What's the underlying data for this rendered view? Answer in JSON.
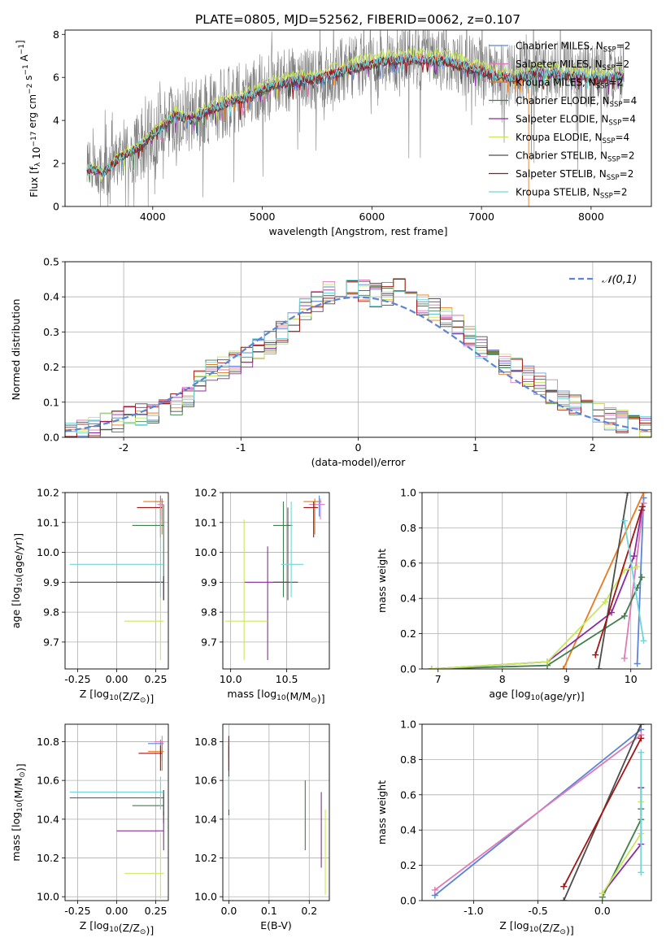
{
  "figure": {
    "title": "PLATE=0805, MJD=52562, FIBERID=0062, z=0.107"
  },
  "chart_data": [
    {
      "id": "spectrum",
      "type": "line",
      "xlabel": "wavelength [Angstrom, rest frame]",
      "ylabel": "Flux [f_λ 10^-17 erg cm^-2 s^-1 A^-1]",
      "xlim": [
        3200,
        8550
      ],
      "ylim": [
        0,
        8.2
      ],
      "xticks": [
        4000,
        5000,
        6000,
        7000,
        8000
      ],
      "yticks": [
        0,
        2,
        4,
        6,
        8
      ],
      "grid": false,
      "legend_position": "right",
      "data_range": [
        3400,
        8300
      ],
      "data_color": "#808080",
      "continuum": {
        "x": [
          3400,
          3550,
          3700,
          3850,
          4000,
          4100,
          4200,
          4350,
          4500,
          4700,
          4900,
          5100,
          5300,
          5500,
          5700,
          5900,
          6100,
          6300,
          6500,
          6700,
          6900,
          7100,
          7300,
          7500,
          7700,
          7900,
          8100,
          8300
        ],
        "y": [
          1.8,
          1.6,
          2.3,
          2.7,
          3.4,
          3.8,
          4.3,
          4.1,
          4.5,
          4.9,
          5.2,
          5.7,
          5.9,
          6.0,
          6.3,
          6.6,
          6.8,
          6.9,
          6.9,
          6.8,
          6.5,
          6.2,
          6.0,
          6.3,
          6.2,
          6.1,
          6.0,
          6.2
        ]
      },
      "series": [
        {
          "name": "Chabrier MILES, N_SSP=2",
          "color": "#5a85d8"
        },
        {
          "name": "Salpeter MILES, N_SSP=2",
          "color": "#e07ab8"
        },
        {
          "name": "Kroupa MILES, N_SSP=2",
          "color": "#e87a1e"
        },
        {
          "name": "Chabrier ELODIE, N_SSP=4",
          "color": "#3f7f4a"
        },
        {
          "name": "Salpeter ELODIE, N_SSP=4",
          "color": "#8a2aa0"
        },
        {
          "name": "Kroupa ELODIE, N_SSP=4",
          "color": "#c8e85a"
        },
        {
          "name": "Chabrier STELIB, N_SSP=2",
          "color": "#4d4d4d"
        },
        {
          "name": "Salpeter STELIB, N_SSP=2",
          "color": "#a31515"
        },
        {
          "name": "Kroupa STELIB, N_SSP=2",
          "color": "#72d6d8"
        }
      ]
    },
    {
      "id": "residuals",
      "type": "step-histogram",
      "xlabel": "(data-model)/error",
      "ylabel": "Normed distribution",
      "xlim": [
        -2.5,
        2.5
      ],
      "ylim": [
        0,
        0.5
      ],
      "xticks": [
        -2,
        -1,
        0,
        1,
        2
      ],
      "yticks": [
        0.0,
        0.1,
        0.2,
        0.3,
        0.4,
        0.5
      ],
      "grid": true,
      "legend_position": "top-right",
      "reference": {
        "name": "𝒩(0,1)",
        "color": "#5a85d8",
        "mean": 0,
        "sigma": 1
      },
      "bin_width": 0.1,
      "envelope": {
        "x": [
          -2.5,
          -2.2,
          -2.0,
          -1.7,
          -1.5,
          -1.3,
          -1.0,
          -0.7,
          -0.4,
          -0.2,
          0.0,
          0.2,
          0.35,
          0.6,
          0.8,
          1.1,
          1.4,
          1.7,
          2.0,
          2.3,
          2.5
        ],
        "y": [
          0.015,
          0.03,
          0.05,
          0.08,
          0.1,
          0.18,
          0.22,
          0.28,
          0.38,
          0.42,
          0.42,
          0.4,
          0.43,
          0.37,
          0.33,
          0.24,
          0.18,
          0.12,
          0.07,
          0.04,
          0.02
        ]
      }
    },
    {
      "id": "age-vs-Z",
      "type": "errorbar",
      "xlabel": "Z [log10(Z/Z⊙)]",
      "ylabel": "age [log10(age/yr)]",
      "xlim": [
        -0.33,
        0.33
      ],
      "ylim": [
        9.61,
        10.2
      ],
      "xticks": [
        -0.25,
        0.0,
        0.25
      ],
      "yticks": [
        9.7,
        9.8,
        9.9,
        10.0,
        10.1,
        10.2
      ],
      "grid": true,
      "points": [
        {
          "series": "Chabrier MILES",
          "color": "#5a85d8",
          "x": 0.28,
          "xlo": 0.24,
          "xhi": 0.3,
          "y": 10.17,
          "ylo": 10.12,
          "yhi": 10.19
        },
        {
          "series": "Salpeter MILES",
          "color": "#e07ab8",
          "x": 0.29,
          "xlo": 0.26,
          "xhi": 0.3,
          "y": 10.16,
          "ylo": 10.11,
          "yhi": 10.18
        },
        {
          "series": "Kroupa MILES",
          "color": "#e87a1e",
          "x": 0.29,
          "xlo": 0.17,
          "xhi": 0.3,
          "y": 10.17,
          "ylo": 10.06,
          "yhi": 10.18
        },
        {
          "series": "Chabrier ELODIE",
          "color": "#3f7f4a",
          "x": 0.3,
          "xlo": 0.1,
          "xhi": 0.3,
          "y": 10.09,
          "ylo": 9.84,
          "yhi": 10.16
        },
        {
          "series": "Salpeter ELODIE",
          "color": "#8a2aa0",
          "x": 0.3,
          "xlo": 0.0,
          "xhi": 0.3,
          "y": 9.9,
          "ylo": 9.84,
          "yhi": 9.92
        },
        {
          "series": "Kroupa ELODIE",
          "color": "#c8e85a",
          "x": 0.28,
          "xlo": 0.05,
          "xhi": 0.3,
          "y": 9.77,
          "ylo": 9.64,
          "yhi": 9.92
        },
        {
          "series": "Chabrier STELIB",
          "color": "#4d4d4d",
          "x": 0.3,
          "xlo": -0.3,
          "xhi": 0.3,
          "y": 9.9,
          "ylo": 9.84,
          "yhi": 9.92
        },
        {
          "series": "Salpeter STELIB",
          "color": "#a31515",
          "x": 0.28,
          "xlo": 0.13,
          "xhi": 0.29,
          "y": 10.15,
          "ylo": 10.05,
          "yhi": 10.17
        },
        {
          "series": "Kroupa STELIB",
          "color": "#72d6d8",
          "x": 0.28,
          "xlo": -0.3,
          "xhi": 0.3,
          "y": 9.96,
          "ylo": 9.85,
          "yhi": 10.17
        }
      ]
    },
    {
      "id": "age-vs-mass",
      "type": "errorbar",
      "xlabel": "mass [log10(M/M⊙)]",
      "ylabel": "",
      "xlim": [
        9.93,
        10.88
      ],
      "ylim": [
        9.61,
        10.2
      ],
      "xticks": [
        10.0,
        10.5
      ],
      "yticks": [
        9.7,
        9.8,
        9.9,
        10.0,
        10.1,
        10.2
      ],
      "grid": true,
      "points": [
        {
          "series": "Chabrier MILES",
          "color": "#5a85d8",
          "x": 10.79,
          "xlo": 10.72,
          "xhi": 10.81,
          "y": 10.17,
          "ylo": 10.12,
          "yhi": 10.19
        },
        {
          "series": "Salpeter MILES",
          "color": "#e07ab8",
          "x": 10.8,
          "xlo": 10.7,
          "xhi": 10.84,
          "y": 10.16,
          "ylo": 10.11,
          "yhi": 10.18
        },
        {
          "series": "Kroupa MILES",
          "color": "#e87a1e",
          "x": 10.75,
          "xlo": 10.65,
          "xhi": 10.8,
          "y": 10.17,
          "ylo": 10.06,
          "yhi": 10.18
        },
        {
          "series": "Chabrier ELODIE",
          "color": "#3f7f4a",
          "x": 10.47,
          "xlo": 10.38,
          "xhi": 10.55,
          "y": 10.09,
          "ylo": 9.85,
          "yhi": 10.17
        },
        {
          "series": "Salpeter ELODIE",
          "color": "#8a2aa0",
          "x": 10.33,
          "xlo": 10.12,
          "xhi": 10.5,
          "y": 9.9,
          "ylo": 9.64,
          "yhi": 10.02
        },
        {
          "series": "Kroupa ELODIE",
          "color": "#c8e85a",
          "x": 10.12,
          "xlo": 9.95,
          "xhi": 10.33,
          "y": 9.77,
          "ylo": 9.64,
          "yhi": 10.11
        },
        {
          "series": "Chabrier STELIB",
          "color": "#4d4d4d",
          "x": 10.51,
          "xlo": 10.38,
          "xhi": 10.6,
          "y": 9.9,
          "ylo": 9.84,
          "yhi": 10.15
        },
        {
          "series": "Salpeter STELIB",
          "color": "#a31515",
          "x": 10.74,
          "xlo": 10.65,
          "xhi": 10.78,
          "y": 10.15,
          "ylo": 10.05,
          "yhi": 10.17
        },
        {
          "series": "Kroupa STELIB",
          "color": "#72d6d8",
          "x": 10.54,
          "xlo": 10.45,
          "xhi": 10.65,
          "y": 9.96,
          "ylo": 9.85,
          "yhi": 10.17
        }
      ]
    },
    {
      "id": "weight-vs-age",
      "type": "line",
      "xlabel": "age [log10(age/yr)]",
      "ylabel": "mass weight",
      "xlim": [
        6.75,
        10.32
      ],
      "ylim": [
        0,
        1
      ],
      "xticks": [
        7,
        8,
        9,
        10
      ],
      "yticks": [
        0.0,
        0.2,
        0.4,
        0.6,
        0.8,
        1.0
      ],
      "grid": true,
      "series": [
        {
          "name": "Chabrier MILES",
          "color": "#5a85d8",
          "x": [
            10.1,
            10.2
          ],
          "y": [
            0.03,
            0.97
          ]
        },
        {
          "name": "Salpeter MILES",
          "color": "#e07ab8",
          "x": [
            9.9,
            10.2
          ],
          "y": [
            0.06,
            0.94
          ]
        },
        {
          "name": "Kroupa MILES",
          "color": "#e87a1e",
          "x": [
            8.95,
            10.2
          ],
          "y": [
            0.0,
            1.0
          ]
        },
        {
          "name": "Chabrier ELODIE",
          "color": "#3f7f4a",
          "x": [
            6.9,
            8.7,
            9.9,
            10.1,
            10.17
          ],
          "y": [
            0.0,
            0.02,
            0.3,
            0.46,
            0.52
          ]
        },
        {
          "name": "Salpeter ELODIE",
          "color": "#8a2aa0",
          "x": [
            6.9,
            8.7,
            9.7,
            10.05,
            10.17
          ],
          "y": [
            0.0,
            0.04,
            0.32,
            0.64,
            0.9
          ]
        },
        {
          "name": "Kroupa ELODIE",
          "color": "#c8e85a",
          "x": [
            6.9,
            8.7,
            9.6,
            9.9,
            10.1
          ],
          "y": [
            0.0,
            0.04,
            0.38,
            0.56,
            0.58
          ]
        },
        {
          "name": "Chabrier STELIB",
          "color": "#4d4d4d",
          "x": [
            9.5,
            9.95
          ],
          "y": [
            0.0,
            1.0
          ]
        },
        {
          "name": "Salpeter STELIB",
          "color": "#a31515",
          "x": [
            9.45,
            10.18
          ],
          "y": [
            0.08,
            0.92
          ]
        },
        {
          "name": "Kroupa STELIB",
          "color": "#72d6d8",
          "x": [
            9.9,
            10.2
          ],
          "y": [
            0.84,
            0.16
          ]
        }
      ]
    },
    {
      "id": "mass-vs-Z",
      "type": "errorbar",
      "xlabel": "Z [log10(Z/Z⊙)]",
      "ylabel": "mass [log10(M/M⊙)]",
      "xlim": [
        -0.33,
        0.33
      ],
      "ylim": [
        9.98,
        10.89
      ],
      "xticks": [
        -0.25,
        0.0,
        0.25
      ],
      "yticks": [
        10.0,
        10.2,
        10.4,
        10.6,
        10.8
      ],
      "grid": true,
      "points": [
        {
          "series": "Chabrier MILES",
          "color": "#5a85d8",
          "x": 0.28,
          "xlo": 0.2,
          "xhi": 0.3,
          "y": 10.79,
          "ylo": 10.72,
          "yhi": 10.81
        },
        {
          "series": "Salpeter MILES",
          "color": "#e07ab8",
          "x": 0.29,
          "xlo": 0.24,
          "xhi": 0.3,
          "y": 10.8,
          "ylo": 10.7,
          "yhi": 10.83
        },
        {
          "series": "Kroupa MILES",
          "color": "#e87a1e",
          "x": 0.29,
          "xlo": 0.2,
          "xhi": 0.3,
          "y": 10.75,
          "ylo": 10.65,
          "yhi": 10.8
        },
        {
          "series": "Chabrier ELODIE",
          "color": "#3f7f4a",
          "x": 0.3,
          "xlo": 0.1,
          "xhi": 0.3,
          "y": 10.47,
          "ylo": 10.38,
          "yhi": 10.55
        },
        {
          "series": "Salpeter ELODIE",
          "color": "#8a2aa0",
          "x": 0.3,
          "xlo": 0.0,
          "xhi": 0.3,
          "y": 10.34,
          "ylo": 10.24,
          "yhi": 10.44
        },
        {
          "series": "Kroupa ELODIE",
          "color": "#c8e85a",
          "x": 0.28,
          "xlo": 0.05,
          "xhi": 0.3,
          "y": 10.12,
          "ylo": 9.99,
          "yhi": 10.33
        },
        {
          "series": "Chabrier STELIB",
          "color": "#4d4d4d",
          "x": 0.3,
          "xlo": -0.3,
          "xhi": 0.3,
          "y": 10.51,
          "ylo": 10.42,
          "yhi": 10.55
        },
        {
          "series": "Salpeter STELIB",
          "color": "#a31515",
          "x": 0.28,
          "xlo": 0.14,
          "xhi": 0.29,
          "y": 10.74,
          "ylo": 10.65,
          "yhi": 10.78
        },
        {
          "series": "Kroupa STELIB",
          "color": "#72d6d8",
          "x": 0.28,
          "xlo": -0.3,
          "xhi": 0.3,
          "y": 10.54,
          "ylo": 10.45,
          "yhi": 10.62
        }
      ]
    },
    {
      "id": "mass-vs-EBV",
      "type": "errorbar",
      "xlabel": "E(B-V)",
      "ylabel": "",
      "xlim": [
        -0.015,
        0.25
      ],
      "ylim": [
        9.98,
        10.89
      ],
      "xticks": [
        0.0,
        0.1,
        0.2
      ],
      "yticks": [
        10.0,
        10.2,
        10.4,
        10.6,
        10.8
      ],
      "grid": true,
      "points": [
        {
          "series": "Chabrier MILES",
          "color": "#5a85d8",
          "x": 0.0,
          "xlo": 0.0,
          "xhi": 0.0,
          "y": 10.79,
          "ylo": 10.72,
          "yhi": 10.81
        },
        {
          "series": "Salpeter MILES",
          "color": "#e07ab8",
          "x": 0.0,
          "xlo": 0.0,
          "xhi": 0.0,
          "y": 10.8,
          "ylo": 10.7,
          "yhi": 10.83
        },
        {
          "series": "Kroupa MILES",
          "color": "#e87a1e",
          "x": 0.0,
          "xlo": 0.0,
          "xhi": 0.0,
          "y": 10.75,
          "ylo": 10.65,
          "yhi": 10.8
        },
        {
          "series": "Chabrier ELODIE",
          "color": "#3f7f4a",
          "x": 0.19,
          "xlo": 0.19,
          "xhi": 0.19,
          "y": 10.47,
          "ylo": 10.24,
          "yhi": 10.6
        },
        {
          "series": "Salpeter ELODIE",
          "color": "#8a2aa0",
          "x": 0.23,
          "xlo": 0.23,
          "xhi": 0.23,
          "y": 10.34,
          "ylo": 10.15,
          "yhi": 10.54
        },
        {
          "series": "Kroupa ELODIE",
          "color": "#c8e85a",
          "x": 0.24,
          "xlo": 0.24,
          "xhi": 0.24,
          "y": 10.12,
          "ylo": 10.01,
          "yhi": 10.45
        },
        {
          "series": "Chabrier STELIB",
          "color": "#4d4d4d",
          "x": 0.0,
          "xlo": 0.0,
          "xhi": 0.0,
          "y": 10.51,
          "ylo": 10.42,
          "yhi": 10.78
        },
        {
          "series": "Salpeter STELIB",
          "color": "#a31515",
          "x": 0.0,
          "xlo": 0.0,
          "xhi": 0.0,
          "y": 10.74,
          "ylo": 10.65,
          "yhi": 10.83
        },
        {
          "series": "Kroupa STELIB",
          "color": "#72d6d8",
          "x": 0.0,
          "xlo": 0.0,
          "xhi": 0.0,
          "y": 10.54,
          "ylo": 10.45,
          "yhi": 10.62
        }
      ]
    },
    {
      "id": "weight-vs-Z",
      "type": "line",
      "xlabel": "Z [log10(Z/Z⊙)]",
      "ylabel": "mass weight",
      "xlim": [
        -1.4,
        0.38
      ],
      "ylim": [
        0,
        1
      ],
      "xticks": [
        -1.0,
        -0.5,
        0.0
      ],
      "yticks": [
        0.0,
        0.2,
        0.4,
        0.6,
        0.8,
        1.0
      ],
      "grid": true,
      "series": [
        {
          "name": "Chabrier MILES",
          "color": "#5a85d8",
          "x": [
            -1.3,
            0.3
          ],
          "y": [
            0.03,
            0.97
          ]
        },
        {
          "name": "Salpeter MILES",
          "color": "#e07ab8",
          "x": [
            -1.3,
            0.3
          ],
          "y": [
            0.06,
            0.94
          ]
        },
        {
          "name": "Kroupa MILES",
          "color": "#e87a1e",
          "x": [
            0.3
          ],
          "y": [
            1.0
          ]
        },
        {
          "name": "Chabrier ELODIE",
          "color": "#3f7f4a",
          "x": [
            0.0,
            0.3,
            0.3
          ],
          "y": [
            0.02,
            0.46,
            0.52
          ]
        },
        {
          "name": "Salpeter ELODIE",
          "color": "#8a2aa0",
          "x": [
            0.0,
            0.3,
            0.3
          ],
          "y": [
            0.04,
            0.32,
            0.64
          ]
        },
        {
          "name": "Kroupa ELODIE",
          "color": "#c8e85a",
          "x": [
            0.0,
            0.3,
            0.3
          ],
          "y": [
            0.04,
            0.38,
            0.56
          ]
        },
        {
          "name": "Chabrier STELIB",
          "color": "#4d4d4d",
          "x": [
            -0.3,
            0.3
          ],
          "y": [
            0.0,
            1.0
          ]
        },
        {
          "name": "Salpeter STELIB",
          "color": "#a31515",
          "x": [
            -0.3,
            0.3
          ],
          "y": [
            0.08,
            0.92
          ]
        },
        {
          "name": "Kroupa STELIB",
          "color": "#72d6d8",
          "x": [
            0.3,
            0.3
          ],
          "y": [
            0.16,
            0.84
          ]
        }
      ]
    }
  ]
}
